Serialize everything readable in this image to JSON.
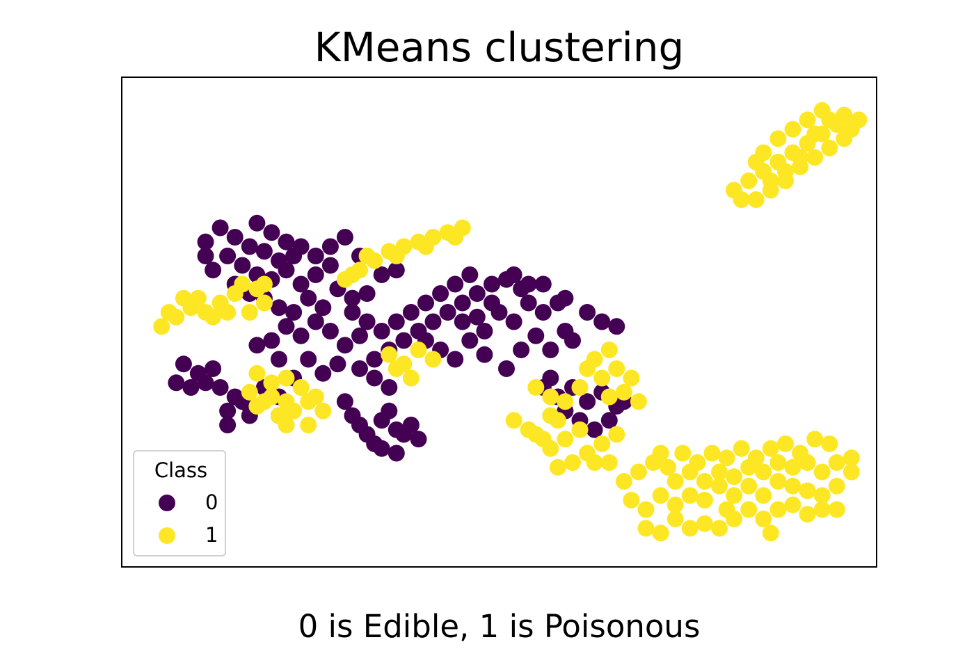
{
  "chart_data": {
    "type": "scatter",
    "title": "KMeans clustering",
    "caption": "0 is Edible, 1 is Poisonous",
    "xlabel": "",
    "ylabel": "",
    "xlim": [
      0,
      1
    ],
    "ylim": [
      0,
      1
    ],
    "axis_ticks": false,
    "grid": false,
    "legend": {
      "title": "Class",
      "placement": "lower-left",
      "entries": [
        {
          "label": "0",
          "color": "#440154"
        },
        {
          "label": "1",
          "color": "#fde725"
        }
      ]
    },
    "series": [
      {
        "name": "0",
        "color": "#440154",
        "points": [
          [
            0.1,
            0.67
          ],
          [
            0.12,
            0.7
          ],
          [
            0.14,
            0.68
          ],
          [
            0.16,
            0.66
          ],
          [
            0.18,
            0.65
          ],
          [
            0.2,
            0.63
          ],
          [
            0.22,
            0.64
          ],
          [
            0.13,
            0.64
          ],
          [
            0.15,
            0.62
          ],
          [
            0.17,
            0.6
          ],
          [
            0.19,
            0.59
          ],
          [
            0.21,
            0.61
          ],
          [
            0.23,
            0.58
          ],
          [
            0.25,
            0.6
          ],
          [
            0.11,
            0.61
          ],
          [
            0.14,
            0.58
          ],
          [
            0.16,
            0.56
          ],
          [
            0.18,
            0.55
          ],
          [
            0.2,
            0.53
          ],
          [
            0.22,
            0.52
          ],
          [
            0.24,
            0.55
          ],
          [
            0.26,
            0.53
          ],
          [
            0.28,
            0.57
          ],
          [
            0.3,
            0.55
          ],
          [
            0.27,
            0.62
          ],
          [
            0.25,
            0.64
          ],
          [
            0.23,
            0.66
          ],
          [
            0.21,
            0.67
          ],
          [
            0.19,
            0.69
          ],
          [
            0.17,
            0.71
          ],
          [
            0.21,
            0.49
          ],
          [
            0.23,
            0.47
          ],
          [
            0.19,
            0.46
          ],
          [
            0.17,
            0.45
          ],
          [
            0.25,
            0.5
          ],
          [
            0.27,
            0.48
          ],
          [
            0.29,
            0.45
          ],
          [
            0.31,
            0.47
          ],
          [
            0.2,
            0.42
          ],
          [
            0.24,
            0.42
          ],
          [
            0.07,
            0.41
          ],
          [
            0.09,
            0.39
          ],
          [
            0.11,
            0.4
          ],
          [
            0.06,
            0.37
          ],
          [
            0.08,
            0.36
          ],
          [
            0.1,
            0.37
          ],
          [
            0.12,
            0.36
          ],
          [
            0.14,
            0.34
          ],
          [
            0.13,
            0.31
          ],
          [
            0.15,
            0.33
          ],
          [
            0.16,
            0.3
          ],
          [
            0.13,
            0.28
          ],
          [
            0.16,
            0.32
          ],
          [
            0.18,
            0.36
          ],
          [
            0.2,
            0.34
          ],
          [
            0.22,
            0.38
          ],
          [
            0.2,
            0.3
          ],
          [
            0.26,
            0.39
          ],
          [
            0.28,
            0.41
          ],
          [
            0.29,
            0.33
          ],
          [
            0.3,
            0.3
          ],
          [
            0.31,
            0.28
          ],
          [
            0.32,
            0.26
          ],
          [
            0.33,
            0.24
          ],
          [
            0.34,
            0.29
          ],
          [
            0.35,
            0.31
          ],
          [
            0.36,
            0.27
          ],
          [
            0.37,
            0.26
          ],
          [
            0.38,
            0.28
          ],
          [
            0.39,
            0.25
          ],
          [
            0.34,
            0.23
          ],
          [
            0.36,
            0.22
          ],
          [
            0.35,
            0.36
          ],
          [
            0.33,
            0.38
          ],
          [
            0.31,
            0.4
          ],
          [
            0.33,
            0.42
          ],
          [
            0.35,
            0.44
          ],
          [
            0.37,
            0.46
          ],
          [
            0.39,
            0.48
          ],
          [
            0.41,
            0.5
          ],
          [
            0.43,
            0.52
          ],
          [
            0.45,
            0.54
          ],
          [
            0.47,
            0.56
          ],
          [
            0.49,
            0.58
          ],
          [
            0.51,
            0.59
          ],
          [
            0.53,
            0.57
          ],
          [
            0.38,
            0.52
          ],
          [
            0.4,
            0.54
          ],
          [
            0.42,
            0.56
          ],
          [
            0.44,
            0.58
          ],
          [
            0.46,
            0.6
          ],
          [
            0.36,
            0.5
          ],
          [
            0.34,
            0.48
          ],
          [
            0.32,
            0.5
          ],
          [
            0.3,
            0.52
          ],
          [
            0.32,
            0.56
          ],
          [
            0.34,
            0.6
          ],
          [
            0.36,
            0.61
          ],
          [
            0.4,
            0.46
          ],
          [
            0.42,
            0.44
          ],
          [
            0.44,
            0.42
          ],
          [
            0.46,
            0.46
          ],
          [
            0.48,
            0.48
          ],
          [
            0.5,
            0.52
          ],
          [
            0.52,
            0.5
          ],
          [
            0.54,
            0.54
          ],
          [
            0.56,
            0.52
          ],
          [
            0.58,
            0.54
          ],
          [
            0.55,
            0.47
          ],
          [
            0.57,
            0.44
          ],
          [
            0.59,
            0.48
          ],
          [
            0.6,
            0.46
          ],
          [
            0.62,
            0.52
          ],
          [
            0.64,
            0.5
          ],
          [
            0.66,
            0.49
          ],
          [
            0.48,
            0.43
          ],
          [
            0.51,
            0.4
          ],
          [
            0.53,
            0.44
          ],
          [
            0.45,
            0.5
          ],
          [
            0.52,
            0.6
          ],
          [
            0.54,
            0.58
          ],
          [
            0.56,
            0.58
          ],
          [
            0.59,
            0.55
          ],
          [
            0.49,
            0.54
          ],
          [
            0.47,
            0.51
          ],
          [
            0.56,
            0.36
          ],
          [
            0.58,
            0.34
          ],
          [
            0.6,
            0.36
          ],
          [
            0.62,
            0.33
          ],
          [
            0.64,
            0.35
          ],
          [
            0.66,
            0.32
          ],
          [
            0.59,
            0.31
          ],
          [
            0.61,
            0.29
          ],
          [
            0.63,
            0.27
          ],
          [
            0.65,
            0.29
          ],
          [
            0.67,
            0.33
          ],
          [
            0.57,
            0.38
          ],
          [
            0.27,
            0.66
          ],
          [
            0.29,
            0.68
          ],
          [
            0.31,
            0.64
          ],
          [
            0.1,
            0.64
          ]
        ]
      },
      {
        "name": "1",
        "color": "#fde725",
        "points": [
          [
            0.04,
            0.49
          ],
          [
            0.06,
            0.51
          ],
          [
            0.08,
            0.53
          ],
          [
            0.1,
            0.52
          ],
          [
            0.12,
            0.54
          ],
          [
            0.14,
            0.56
          ],
          [
            0.05,
            0.52
          ],
          [
            0.07,
            0.55
          ],
          [
            0.09,
            0.55
          ],
          [
            0.11,
            0.51
          ],
          [
            0.13,
            0.52
          ],
          [
            0.15,
            0.58
          ],
          [
            0.17,
            0.57
          ],
          [
            0.18,
            0.54
          ],
          [
            0.16,
            0.52
          ],
          [
            0.18,
            0.58
          ],
          [
            0.29,
            0.59
          ],
          [
            0.31,
            0.61
          ],
          [
            0.33,
            0.63
          ],
          [
            0.35,
            0.65
          ],
          [
            0.37,
            0.66
          ],
          [
            0.39,
            0.67
          ],
          [
            0.41,
            0.68
          ],
          [
            0.43,
            0.69
          ],
          [
            0.45,
            0.7
          ],
          [
            0.32,
            0.64
          ],
          [
            0.36,
            0.64
          ],
          [
            0.4,
            0.66
          ],
          [
            0.44,
            0.68
          ],
          [
            0.3,
            0.6
          ],
          [
            0.17,
            0.39
          ],
          [
            0.19,
            0.37
          ],
          [
            0.21,
            0.38
          ],
          [
            0.23,
            0.36
          ],
          [
            0.19,
            0.34
          ],
          [
            0.21,
            0.33
          ],
          [
            0.16,
            0.35
          ],
          [
            0.18,
            0.33
          ],
          [
            0.22,
            0.31
          ],
          [
            0.24,
            0.33
          ],
          [
            0.26,
            0.31
          ],
          [
            0.24,
            0.28
          ],
          [
            0.2,
            0.3
          ],
          [
            0.17,
            0.32
          ],
          [
            0.21,
            0.28
          ],
          [
            0.25,
            0.34
          ],
          [
            0.35,
            0.43
          ],
          [
            0.37,
            0.41
          ],
          [
            0.39,
            0.44
          ],
          [
            0.41,
            0.42
          ],
          [
            0.38,
            0.38
          ],
          [
            0.36,
            0.4
          ],
          [
            0.55,
            0.36
          ],
          [
            0.57,
            0.34
          ],
          [
            0.59,
            0.33
          ],
          [
            0.57,
            0.3
          ],
          [
            0.55,
            0.26
          ],
          [
            0.57,
            0.23
          ],
          [
            0.59,
            0.25
          ],
          [
            0.61,
            0.27
          ],
          [
            0.62,
            0.22
          ],
          [
            0.6,
            0.2
          ],
          [
            0.58,
            0.19
          ],
          [
            0.56,
            0.25
          ],
          [
            0.58,
            0.29
          ],
          [
            0.63,
            0.42
          ],
          [
            0.65,
            0.44
          ],
          [
            0.62,
            0.4
          ],
          [
            0.64,
            0.38
          ],
          [
            0.66,
            0.4
          ],
          [
            0.68,
            0.38
          ],
          [
            0.67,
            0.35
          ],
          [
            0.65,
            0.34
          ],
          [
            0.64,
            0.24
          ],
          [
            0.63,
            0.2
          ],
          [
            0.66,
            0.26
          ],
          [
            0.52,
            0.29
          ],
          [
            0.54,
            0.27
          ],
          [
            0.69,
            0.33
          ],
          [
            0.61,
            0.36
          ],
          [
            0.65,
            0.2
          ],
          [
            0.67,
            0.16
          ],
          [
            0.69,
            0.18
          ],
          [
            0.71,
            0.2
          ],
          [
            0.73,
            0.19
          ],
          [
            0.75,
            0.22
          ],
          [
            0.77,
            0.2
          ],
          [
            0.79,
            0.22
          ],
          [
            0.81,
            0.21
          ],
          [
            0.83,
            0.23
          ],
          [
            0.85,
            0.21
          ],
          [
            0.87,
            0.23
          ],
          [
            0.89,
            0.24
          ],
          [
            0.91,
            0.22
          ],
          [
            0.93,
            0.25
          ],
          [
            0.95,
            0.24
          ],
          [
            0.68,
            0.12
          ],
          [
            0.7,
            0.1
          ],
          [
            0.72,
            0.13
          ],
          [
            0.74,
            0.11
          ],
          [
            0.76,
            0.13
          ],
          [
            0.78,
            0.12
          ],
          [
            0.8,
            0.15
          ],
          [
            0.82,
            0.13
          ],
          [
            0.84,
            0.15
          ],
          [
            0.86,
            0.13
          ],
          [
            0.88,
            0.16
          ],
          [
            0.9,
            0.15
          ],
          [
            0.92,
            0.14
          ],
          [
            0.94,
            0.13
          ],
          [
            0.96,
            0.15
          ],
          [
            0.98,
            0.21
          ],
          [
            0.7,
            0.06
          ],
          [
            0.72,
            0.05
          ],
          [
            0.74,
            0.08
          ],
          [
            0.76,
            0.06
          ],
          [
            0.78,
            0.07
          ],
          [
            0.8,
            0.06
          ],
          [
            0.82,
            0.08
          ],
          [
            0.84,
            0.1
          ],
          [
            0.86,
            0.08
          ],
          [
            0.88,
            0.1
          ],
          [
            0.9,
            0.11
          ],
          [
            0.92,
            0.09
          ],
          [
            0.94,
            0.1
          ],
          [
            0.96,
            0.1
          ],
          [
            0.78,
            0.16
          ],
          [
            0.8,
            0.18
          ],
          [
            0.82,
            0.17
          ],
          [
            0.84,
            0.19
          ],
          [
            0.86,
            0.18
          ],
          [
            0.88,
            0.2
          ],
          [
            0.9,
            0.19
          ],
          [
            0.92,
            0.2
          ],
          [
            0.94,
            0.18
          ],
          [
            0.96,
            0.2
          ],
          [
            0.98,
            0.18
          ],
          [
            0.74,
            0.16
          ],
          [
            0.72,
            0.22
          ],
          [
            0.76,
            0.18
          ],
          [
            0.81,
            0.1
          ],
          [
            0.87,
            0.05
          ],
          [
            0.82,
            0.78
          ],
          [
            0.84,
            0.8
          ],
          [
            0.86,
            0.82
          ],
          [
            0.88,
            0.84
          ],
          [
            0.9,
            0.86
          ],
          [
            0.92,
            0.88
          ],
          [
            0.94,
            0.9
          ],
          [
            0.95,
            0.93
          ],
          [
            0.97,
            0.94
          ],
          [
            0.99,
            0.93
          ],
          [
            0.83,
            0.76
          ],
          [
            0.85,
            0.76
          ],
          [
            0.87,
            0.78
          ],
          [
            0.89,
            0.82
          ],
          [
            0.91,
            0.83
          ],
          [
            0.93,
            0.85
          ],
          [
            0.95,
            0.87
          ],
          [
            0.97,
            0.89
          ],
          [
            0.98,
            0.91
          ],
          [
            0.96,
            0.92
          ],
          [
            0.86,
            0.86
          ],
          [
            0.88,
            0.89
          ],
          [
            0.9,
            0.91
          ],
          [
            0.92,
            0.93
          ],
          [
            0.94,
            0.95
          ],
          [
            0.91,
            0.85
          ],
          [
            0.89,
            0.8
          ],
          [
            0.87,
            0.8
          ],
          [
            0.85,
            0.84
          ],
          [
            0.93,
            0.9
          ]
        ]
      }
    ]
  }
}
